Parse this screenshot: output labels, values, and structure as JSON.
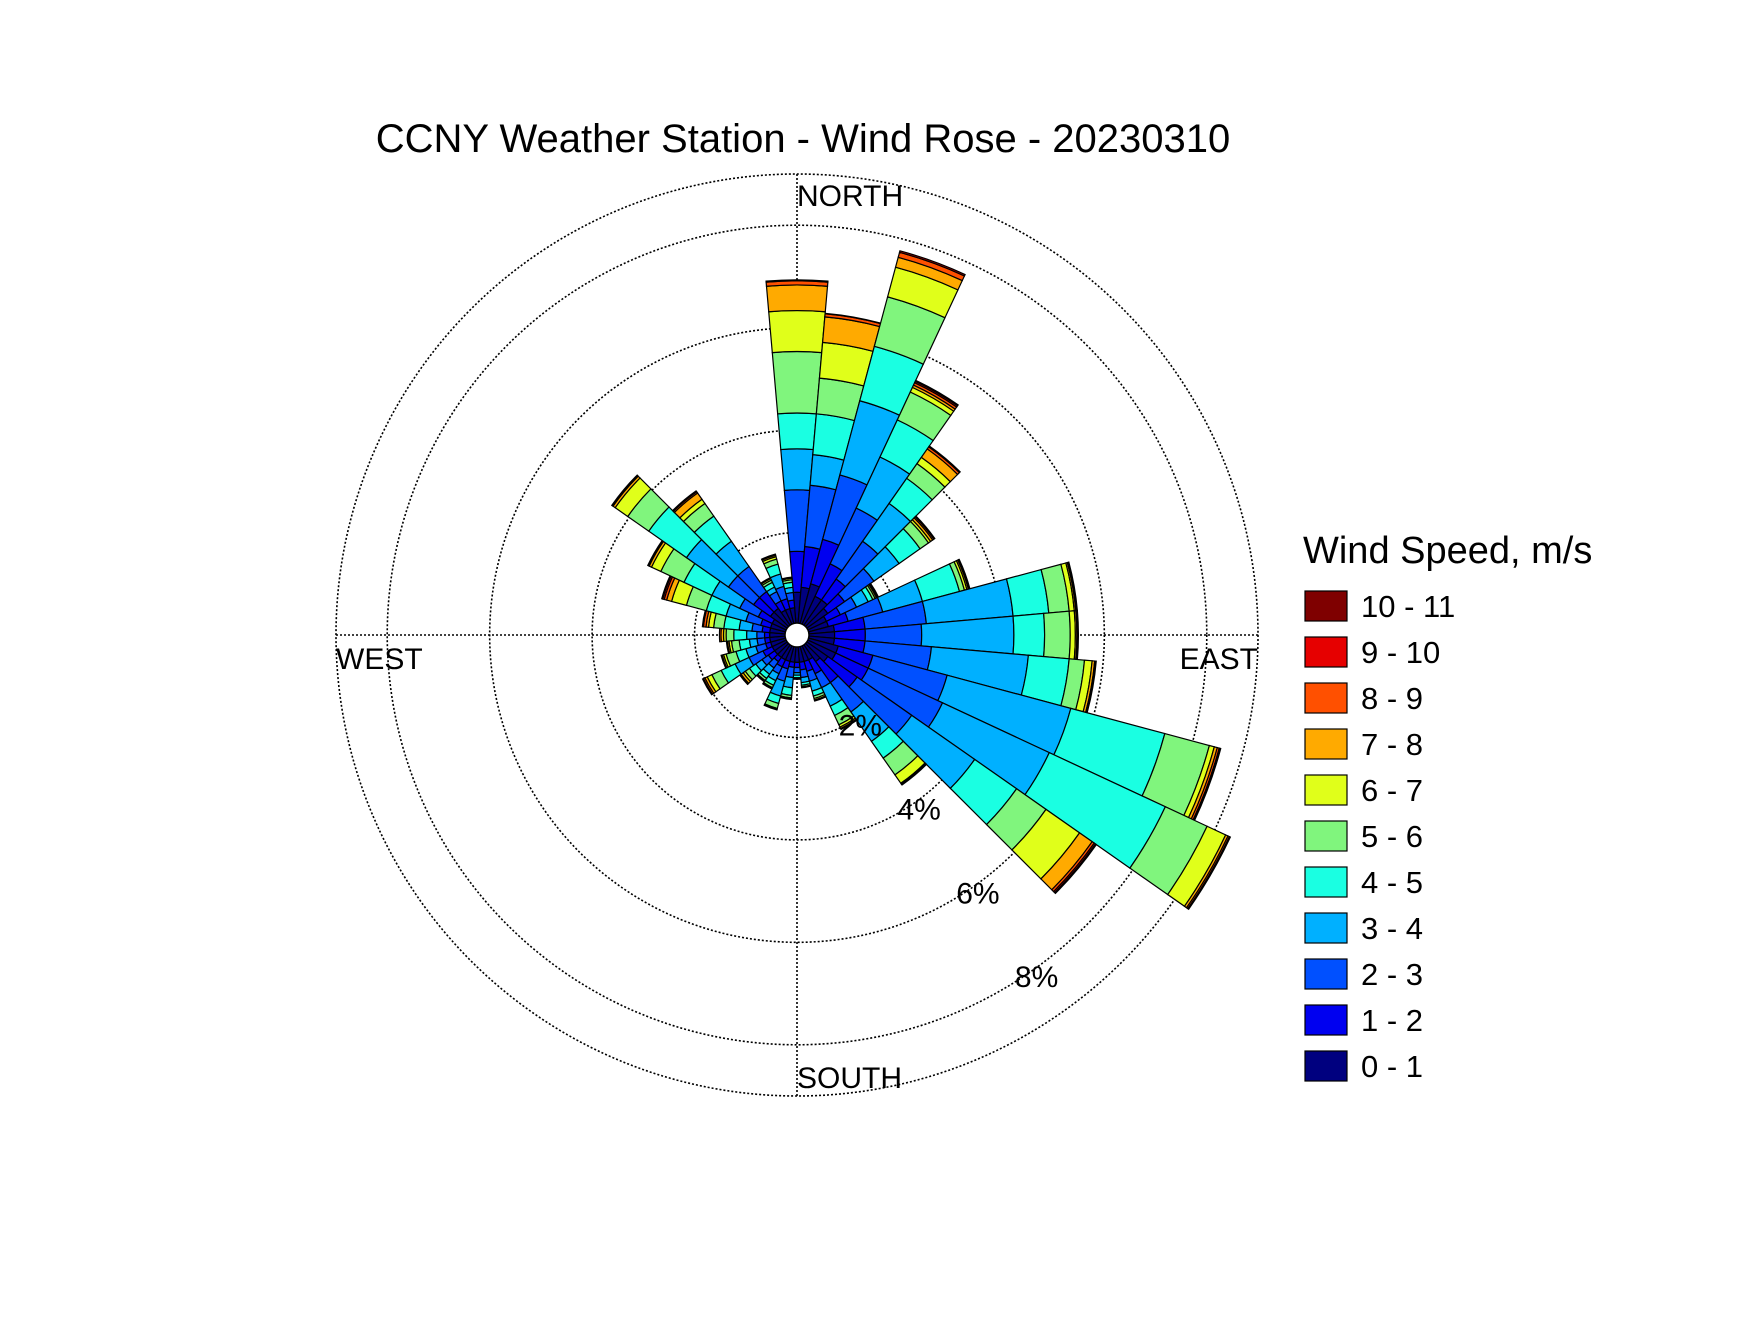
{
  "chart_data": {
    "type": "windrose",
    "title": "CCNY Weather Station - Wind Rose - 20230310",
    "directions": {
      "north": "NORTH",
      "south": "SOUTH",
      "east": "EAST",
      "west": "WEST"
    },
    "radial_axis": {
      "unit": "%",
      "max": 9,
      "ticks": [
        2,
        4,
        6,
        8
      ],
      "tick_labels": [
        "2%",
        "4%",
        "6%",
        "8%"
      ],
      "grid": true
    },
    "legend": {
      "title": "Wind Speed, m/s",
      "placement": "right"
    },
    "speed_bins": [
      {
        "label": "10 - 11",
        "color": "#7f0000"
      },
      {
        "label": "9 - 10",
        "color": "#e60000"
      },
      {
        "label": "8 - 9",
        "color": "#ff5000"
      },
      {
        "label": "7 - 8",
        "color": "#ffaa00"
      },
      {
        "label": "6 - 7",
        "color": "#e0ff1a"
      },
      {
        "label": "5 - 6",
        "color": "#80f57d"
      },
      {
        "label": "4 - 5",
        "color": "#1affe2"
      },
      {
        "label": "3 - 4",
        "color": "#00b0ff"
      },
      {
        "label": "2 - 3",
        "color": "#0050ff"
      },
      {
        "label": "1 - 2",
        "color": "#0000f0"
      },
      {
        "label": "0 - 1",
        "color": "#00007f"
      }
    ],
    "sector_width_deg": 10,
    "series_order_note": "cumulative percent boundaries per direction sector, bins ordered 0-1, 1-2, 2-3, 3-4, 4-5, 5-6, 6-7, 7-8, 8-9, 9-10, 10-11",
    "sectors": [
      {
        "direction_deg": 0,
        "cumulative": [
          0.6,
          1.4,
          2.6,
          3.4,
          4.1,
          5.3,
          6.1,
          6.6,
          6.68,
          6.7,
          6.7
        ]
      },
      {
        "direction_deg": 10,
        "cumulative": [
          0.7,
          1.5,
          2.7,
          3.3,
          4.1,
          4.8,
          5.5,
          6.0,
          6.06,
          6.07,
          6.07
        ]
      },
      {
        "direction_deg": 20,
        "cumulative": [
          0.8,
          1.7,
          3.0,
          4.5,
          5.6,
          6.6,
          7.2,
          7.4,
          7.5,
          7.53,
          7.53
        ]
      },
      {
        "direction_deg": 30,
        "cumulative": [
          0.6,
          1.3,
          2.5,
          3.6,
          4.4,
          5.0,
          5.1,
          5.15,
          5.2,
          5.23,
          5.25
        ]
      },
      {
        "direction_deg": 40,
        "cumulative": [
          0.6,
          1.1,
          2.0,
          2.9,
          3.5,
          3.85,
          4.0,
          4.2,
          4.25,
          4.27,
          4.27
        ]
      },
      {
        "direction_deg": 50,
        "cumulative": [
          0.5,
          0.9,
          1.6,
          2.2,
          2.7,
          2.9,
          2.95,
          3.0,
          3.03,
          3.05,
          3.05
        ]
      },
      {
        "direction_deg": 60,
        "cumulative": [
          0.4,
          0.7,
          1.05,
          1.3,
          1.4,
          1.45,
          1.48,
          1.5,
          1.51,
          1.52,
          1.52
        ]
      },
      {
        "direction_deg": 70,
        "cumulative": [
          0.4,
          0.8,
          1.5,
          2.3,
          3.05,
          3.15,
          3.2,
          3.23,
          3.25,
          3.26,
          3.26
        ]
      },
      {
        "direction_deg": 80,
        "cumulative": [
          0.5,
          1.1,
          2.3,
          4.0,
          4.7,
          5.1,
          5.2,
          5.23,
          5.25,
          5.26,
          5.26
        ]
      },
      {
        "direction_deg": 90,
        "cumulative": [
          0.5,
          1.1,
          2.2,
          4.0,
          4.6,
          5.1,
          5.2,
          5.23,
          5.25,
          5.26,
          5.26
        ]
      },
      {
        "direction_deg": 100,
        "cumulative": [
          0.5,
          1.1,
          2.4,
          4.3,
          5.1,
          5.4,
          5.55,
          5.6,
          5.62,
          5.63,
          5.63
        ]
      },
      {
        "direction_deg": 110,
        "cumulative": [
          0.6,
          1.3,
          2.8,
          5.3,
          7.2,
          8.1,
          8.2,
          8.26,
          8.3,
          8.32,
          8.33
        ]
      },
      {
        "direction_deg": 120,
        "cumulative": [
          0.6,
          1.3,
          2.9,
          5.2,
          7.7,
          8.6,
          9.0,
          9.05,
          9.08,
          9.1,
          9.1
        ]
      },
      {
        "direction_deg": 130,
        "cumulative": [
          0.5,
          1.2,
          2.5,
          4.0,
          5.0,
          5.7,
          6.5,
          6.8,
          6.85,
          6.88,
          6.9
        ]
      },
      {
        "direction_deg": 140,
        "cumulative": [
          0.4,
          0.9,
          1.6,
          2.3,
          2.7,
          3.1,
          3.3,
          3.32,
          3.33,
          3.34,
          3.34
        ]
      },
      {
        "direction_deg": 150,
        "cumulative": [
          0.3,
          0.6,
          0.9,
          1.3,
          1.5,
          1.7,
          1.75,
          1.78,
          1.8,
          1.8,
          1.8
        ]
      },
      {
        "direction_deg": 160,
        "cumulative": [
          0.3,
          0.5,
          0.7,
          0.9,
          1.0,
          1.05,
          1.08,
          1.1,
          1.1,
          1.1,
          1.1
        ]
      },
      {
        "direction_deg": 170,
        "cumulative": [
          0.3,
          0.45,
          0.6,
          0.7,
          0.75,
          0.78,
          0.8,
          0.8,
          0.8,
          0.8,
          0.8
        ]
      },
      {
        "direction_deg": 180,
        "cumulative": [
          0.3,
          0.4,
          0.5,
          0.55,
          0.6,
          0.62,
          0.63,
          0.63,
          0.63,
          0.63,
          0.63
        ]
      },
      {
        "direction_deg": 190,
        "cumulative": [
          0.3,
          0.4,
          0.6,
          0.8,
          0.95,
          1.0,
          1.02,
          1.03,
          1.03,
          1.03,
          1.03
        ]
      },
      {
        "direction_deg": 200,
        "cumulative": [
          0.3,
          0.45,
          0.7,
          1.0,
          1.15,
          1.25,
          1.27,
          1.28,
          1.28,
          1.28,
          1.28
        ]
      },
      {
        "direction_deg": 210,
        "cumulative": [
          0.3,
          0.45,
          0.6,
          0.75,
          0.85,
          0.9,
          0.92,
          0.93,
          0.93,
          0.93,
          0.93
        ]
      },
      {
        "direction_deg": 220,
        "cumulative": [
          0.3,
          0.4,
          0.55,
          0.7,
          0.8,
          0.85,
          0.87,
          0.88,
          0.88,
          0.88,
          0.88
        ]
      },
      {
        "direction_deg": 230,
        "cumulative": [
          0.3,
          0.45,
          0.6,
          0.75,
          0.9,
          1.0,
          1.05,
          1.1,
          1.12,
          1.13,
          1.13
        ]
      },
      {
        "direction_deg": 240,
        "cumulative": [
          0.3,
          0.5,
          0.8,
          1.1,
          1.4,
          1.6,
          1.7,
          1.75,
          1.78,
          1.8,
          1.8
        ]
      },
      {
        "direction_deg": 250,
        "cumulative": [
          0.3,
          0.4,
          0.6,
          0.8,
          1.0,
          1.2,
          1.25,
          1.28,
          1.3,
          1.3,
          1.3
        ]
      },
      {
        "direction_deg": 260,
        "cumulative": [
          0.3,
          0.4,
          0.55,
          0.7,
          0.9,
          1.05,
          1.1,
          1.13,
          1.15,
          1.15,
          1.15
        ]
      },
      {
        "direction_deg": 270,
        "cumulative": [
          0.3,
          0.4,
          0.55,
          0.75,
          1.0,
          1.15,
          1.2,
          1.25,
          1.28,
          1.28,
          1.28
        ]
      },
      {
        "direction_deg": 280,
        "cumulative": [
          0.3,
          0.45,
          0.65,
          0.9,
          1.2,
          1.4,
          1.5,
          1.55,
          1.6,
          1.62,
          1.62
        ]
      },
      {
        "direction_deg": 290,
        "cumulative": [
          0.3,
          0.5,
          0.8,
          1.2,
          1.6,
          2.0,
          2.3,
          2.4,
          2.45,
          2.48,
          2.5
        ]
      },
      {
        "direction_deg": 300,
        "cumulative": [
          0.3,
          0.6,
          1.0,
          1.6,
          2.2,
          2.7,
          2.9,
          2.95,
          2.97,
          2.98,
          2.98
        ]
      },
      {
        "direction_deg": 310,
        "cumulative": [
          0.4,
          0.8,
          1.4,
          2.4,
          3.3,
          3.8,
          4.1,
          4.15,
          4.17,
          4.18,
          4.18
        ]
      },
      {
        "direction_deg": 320,
        "cumulative": [
          0.4,
          0.8,
          1.4,
          2.0,
          2.6,
          2.9,
          3.0,
          3.15,
          3.18,
          3.2,
          3.2
        ]
      },
      {
        "direction_deg": 330,
        "cumulative": [
          0.3,
          0.5,
          0.7,
          0.8,
          0.9,
          0.95,
          0.98,
          1.0,
          1.0,
          1.0,
          1.0
        ]
      },
      {
        "direction_deg": 340,
        "cumulative": [
          0.3,
          0.5,
          0.75,
          1.0,
          1.2,
          1.3,
          1.35,
          1.38,
          1.4,
          1.4,
          1.4
        ]
      },
      {
        "direction_deg": 350,
        "cumulative": [
          0.3,
          0.45,
          0.6,
          0.7,
          0.8,
          0.85,
          0.88,
          0.9,
          0.9,
          0.9,
          0.9
        ]
      }
    ]
  }
}
